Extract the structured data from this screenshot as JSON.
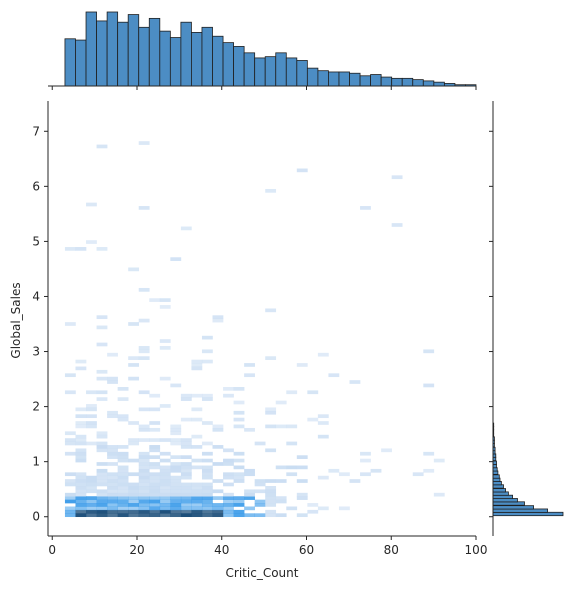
{
  "chart_data": {
    "type": "heatmap",
    "xlabel": "Critic_Count",
    "ylabel": "Global_Sales",
    "xlim": [
      -1,
      100
    ],
    "ylim": [
      -0.35,
      7.55
    ],
    "x_ticks": [
      0,
      20,
      40,
      60,
      80,
      100
    ],
    "y_ticks": [
      0,
      1,
      2,
      3,
      4,
      5,
      6,
      7
    ],
    "bin_edges_x": [
      3,
      100
    ],
    "bin_count_x": 39,
    "bar_color": "#4c8dc4",
    "cmap_light": "#c8dcf2",
    "cmap_mid": "#2f95e8",
    "cmap_dark": "#1d4f7a",
    "marginal_x_counts": [
      37,
      36,
      58,
      51,
      58,
      50,
      56,
      46,
      53,
      43,
      38,
      50,
      42,
      46,
      39,
      34,
      31,
      26,
      22,
      23,
      26,
      22,
      20,
      14,
      12,
      11,
      11,
      10,
      8,
      9,
      7,
      6,
      6,
      5,
      4,
      3,
      2,
      1,
      1
    ],
    "marginal_y_values": [
      0.05,
      0.11,
      0.17,
      0.24,
      0.3,
      0.36,
      0.42,
      0.48,
      0.55,
      0.61,
      0.67,
      0.73,
      0.8,
      0.86,
      0.92,
      0.98,
      1.05,
      1.11,
      1.17,
      1.23,
      1.3,
      1.36,
      1.42,
      1.48,
      1.55,
      1.61,
      1.67
    ],
    "marginal_y_counts": [
      100,
      78,
      58,
      45,
      35,
      28,
      22,
      18,
      15,
      12,
      10,
      9,
      7,
      6,
      5,
      5,
      4,
      4,
      3,
      3,
      2,
      2,
      2,
      1,
      1,
      1,
      1
    ]
  }
}
